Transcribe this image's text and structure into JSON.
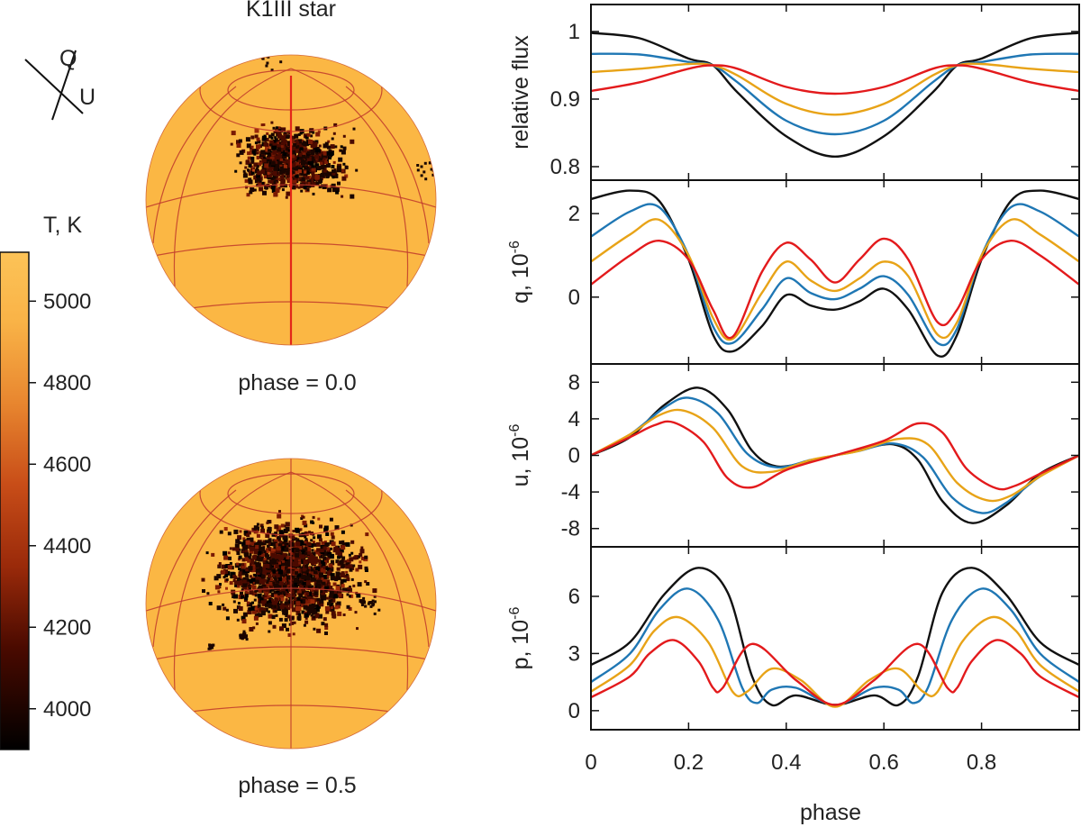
{
  "left": {
    "title": "K1III star",
    "legend_q": "Q",
    "legend_u": "U",
    "colorbar": {
      "title": "T, K",
      "ticks": [
        "5000",
        "4800",
        "4600",
        "4400",
        "4200",
        "4000"
      ],
      "tick_values": [
        5000,
        4800,
        4600,
        4400,
        4200,
        4000
      ],
      "range": [
        3900,
        5120
      ],
      "stops": [
        {
          "t": 3900,
          "color": "#000000"
        },
        {
          "t": 4150,
          "color": "#4a0a00"
        },
        {
          "t": 4350,
          "color": "#9a2a0a"
        },
        {
          "t": 4550,
          "color": "#c84d18"
        },
        {
          "t": 4750,
          "color": "#e8862f"
        },
        {
          "t": 4950,
          "color": "#f9b347"
        },
        {
          "t": 5120,
          "color": "#fcc357"
        }
      ]
    },
    "stars": [
      {
        "caption": "phase = 0.0",
        "photosphere_color": "#fbb744",
        "grid_color": "#c0392b",
        "meridian_color": "#e32719"
      },
      {
        "caption": "phase = 0.5",
        "photosphere_color": "#fbb744",
        "grid_color": "#c0392b",
        "meridian_color": "#c0392b"
      }
    ]
  },
  "chart_data": {
    "type": "line",
    "xlabel": "phase",
    "x_ticks": [
      "0",
      "0.2",
      "0.4",
      "0.6",
      "0.8"
    ],
    "x_tick_values": [
      0,
      0.2,
      0.4,
      0.6,
      0.8
    ],
    "xlim": [
      0,
      1
    ],
    "series_colors": [
      "#111111",
      "#1f77b4",
      "#e8a317",
      "#e31a1c"
    ],
    "panels": [
      {
        "ylabel": "relative flux",
        "ylabel_sup": "",
        "ylim": [
          0.78,
          1.04
        ],
        "y_ticks": [
          "1",
          "0.9",
          "0.8"
        ],
        "y_tick_values": [
          1.0,
          0.9,
          0.8
        ],
        "series": [
          {
            "name": "black",
            "x": [
              0,
              0.1,
              0.2,
              0.25,
              0.3,
              0.4,
              0.5,
              0.6,
              0.7,
              0.75,
              0.8,
              0.9,
              1.0
            ],
            "values": [
              0.998,
              0.99,
              0.96,
              0.95,
              0.91,
              0.845,
              0.815,
              0.845,
              0.91,
              0.95,
              0.96,
              0.99,
              0.998
            ]
          },
          {
            "name": "blue",
            "x": [
              0,
              0.1,
              0.2,
              0.25,
              0.3,
              0.4,
              0.5,
              0.6,
              0.7,
              0.75,
              0.8,
              0.9,
              1.0
            ],
            "values": [
              0.967,
              0.966,
              0.955,
              0.95,
              0.925,
              0.868,
              0.848,
              0.868,
              0.925,
              0.95,
              0.955,
              0.966,
              0.967
            ]
          },
          {
            "name": "orange",
            "x": [
              0,
              0.1,
              0.2,
              0.25,
              0.3,
              0.4,
              0.5,
              0.6,
              0.7,
              0.75,
              0.8,
              0.9,
              1.0
            ],
            "values": [
              0.94,
              0.945,
              0.952,
              0.95,
              0.935,
              0.893,
              0.877,
              0.893,
              0.935,
              0.95,
              0.952,
              0.945,
              0.94
            ]
          },
          {
            "name": "red",
            "x": [
              0,
              0.1,
              0.2,
              0.25,
              0.3,
              0.4,
              0.5,
              0.6,
              0.7,
              0.75,
              0.8,
              0.9,
              1.0
            ],
            "values": [
              0.912,
              0.925,
              0.945,
              0.95,
              0.945,
              0.918,
              0.908,
              0.918,
              0.945,
              0.95,
              0.945,
              0.925,
              0.912
            ]
          }
        ]
      },
      {
        "ylabel": "q, 10",
        "ylabel_sup": "-6",
        "ylim": [
          -1.6,
          2.8
        ],
        "y_ticks": [
          "2",
          "0"
        ],
        "y_tick_values": [
          2,
          0
        ],
        "series": [
          {
            "name": "black",
            "x": [
              0,
              0.08,
              0.14,
              0.2,
              0.25,
              0.29,
              0.35,
              0.4,
              0.45,
              0.5,
              0.55,
              0.6,
              0.65,
              0.71,
              0.75,
              0.8,
              0.86,
              0.92,
              1.0
            ],
            "values": [
              2.35,
              2.55,
              2.3,
              0.9,
              -0.9,
              -1.3,
              -0.7,
              0.05,
              -0.2,
              -0.3,
              -0.1,
              0.2,
              -0.3,
              -1.4,
              -0.9,
              0.9,
              2.3,
              2.55,
              2.35
            ]
          },
          {
            "name": "blue",
            "x": [
              0,
              0.08,
              0.14,
              0.2,
              0.25,
              0.29,
              0.35,
              0.4,
              0.45,
              0.5,
              0.55,
              0.6,
              0.65,
              0.71,
              0.75,
              0.8,
              0.86,
              0.92,
              1.0
            ],
            "values": [
              1.45,
              2.05,
              2.15,
              1.0,
              -0.7,
              -1.1,
              -0.3,
              0.45,
              0.1,
              -0.05,
              0.2,
              0.5,
              0.05,
              -1.1,
              -0.75,
              1.0,
              2.15,
              2.05,
              1.45
            ]
          },
          {
            "name": "orange",
            "x": [
              0,
              0.08,
              0.14,
              0.2,
              0.25,
              0.29,
              0.35,
              0.4,
              0.45,
              0.5,
              0.55,
              0.6,
              0.65,
              0.71,
              0.75,
              0.8,
              0.86,
              0.92,
              1.0
            ],
            "values": [
              0.85,
              1.5,
              1.85,
              1.0,
              -0.5,
              -1.0,
              0.1,
              0.85,
              0.4,
              0.15,
              0.45,
              0.85,
              0.5,
              -0.9,
              -0.6,
              1.0,
              1.85,
              1.5,
              0.85
            ]
          },
          {
            "name": "red",
            "x": [
              0,
              0.08,
              0.14,
              0.2,
              0.25,
              0.29,
              0.35,
              0.4,
              0.45,
              0.5,
              0.55,
              0.6,
              0.65,
              0.71,
              0.75,
              0.8,
              0.86,
              0.92,
              1.0
            ],
            "values": [
              0.3,
              1.0,
              1.35,
              0.9,
              -0.3,
              -0.95,
              0.6,
              1.3,
              0.9,
              0.35,
              0.9,
              1.4,
              0.9,
              -0.6,
              -0.3,
              0.9,
              1.35,
              1.0,
              0.3
            ]
          }
        ]
      },
      {
        "ylabel": "u, 10",
        "ylabel_sup": "-6",
        "ylim": [
          -10,
          10
        ],
        "y_ticks": [
          "8",
          "4",
          "0",
          "-4",
          "-8"
        ],
        "y_tick_values": [
          8,
          4,
          0,
          -4,
          -8
        ],
        "series": [
          {
            "name": "black",
            "x": [
              0,
              0.08,
              0.15,
              0.22,
              0.28,
              0.33,
              0.38,
              0.45,
              0.5,
              0.55,
              0.62,
              0.67,
              0.72,
              0.78,
              0.85,
              0.92,
              1.0
            ],
            "values": [
              0,
              2.0,
              5.5,
              7.4,
              5.0,
              0.5,
              -1.2,
              -0.6,
              0,
              0.6,
              1.2,
              -0.5,
              -5.0,
              -7.4,
              -5.5,
              -2.0,
              0
            ]
          },
          {
            "name": "blue",
            "x": [
              0,
              0.08,
              0.15,
              0.2,
              0.26,
              0.32,
              0.38,
              0.45,
              0.5,
              0.55,
              0.62,
              0.68,
              0.74,
              0.8,
              0.85,
              0.92,
              1.0
            ],
            "values": [
              0,
              2.3,
              5.2,
              6.3,
              4.6,
              0.2,
              -1.3,
              -0.5,
              0,
              0.5,
              1.3,
              -0.2,
              -4.6,
              -6.3,
              -5.2,
              -2.3,
              0
            ]
          },
          {
            "name": "orange",
            "x": [
              0,
              0.08,
              0.14,
              0.19,
              0.25,
              0.31,
              0.37,
              0.45,
              0.5,
              0.55,
              0.63,
              0.69,
              0.75,
              0.81,
              0.86,
              0.92,
              1.0
            ],
            "values": [
              0,
              2.3,
              4.4,
              4.9,
              3.0,
              -1.2,
              -1.8,
              -0.5,
              0,
              0.5,
              1.8,
              1.2,
              -3.0,
              -4.9,
              -4.4,
              -2.3,
              0
            ]
          },
          {
            "name": "red",
            "x": [
              0,
              0.08,
              0.13,
              0.17,
              0.23,
              0.28,
              0.33,
              0.4,
              0.5,
              0.6,
              0.67,
              0.72,
              0.77,
              0.83,
              0.87,
              0.92,
              1.0
            ],
            "values": [
              0,
              2.0,
              3.3,
              3.6,
              1.5,
              -2.5,
              -3.5,
              -1.6,
              0,
              1.6,
              3.5,
              2.5,
              -1.5,
              -3.6,
              -3.3,
              -2.0,
              0
            ]
          }
        ]
      },
      {
        "ylabel": "p, 10",
        "ylabel_sup": "-6",
        "ylim": [
          -1.0,
          8.6
        ],
        "y_ticks": [
          "6",
          "3",
          "0"
        ],
        "y_tick_values": [
          6,
          3,
          0
        ],
        "series": [
          {
            "name": "black",
            "x": [
              0,
              0.08,
              0.15,
              0.22,
              0.28,
              0.33,
              0.37,
              0.42,
              0.5,
              0.58,
              0.63,
              0.67,
              0.72,
              0.78,
              0.85,
              0.92,
              1.0
            ],
            "values": [
              2.4,
              3.6,
              6.1,
              7.5,
              6.2,
              1.8,
              0.3,
              0.8,
              0.3,
              0.8,
              0.3,
              1.8,
              6.2,
              7.5,
              6.1,
              3.6,
              2.4
            ]
          },
          {
            "name": "blue",
            "x": [
              0,
              0.08,
              0.14,
              0.2,
              0.26,
              0.31,
              0.34,
              0.37,
              0.42,
              0.5,
              0.58,
              0.63,
              0.66,
              0.69,
              0.74,
              0.8,
              0.86,
              0.92,
              1.0
            ],
            "values": [
              1.5,
              3.0,
              5.3,
              6.4,
              4.8,
              1.2,
              0.4,
              1.1,
              1.2,
              0.3,
              1.2,
              1.1,
              0.4,
              1.2,
              4.8,
              6.4,
              5.3,
              3.0,
              1.5
            ]
          },
          {
            "name": "orange",
            "x": [
              0,
              0.08,
              0.13,
              0.18,
              0.24,
              0.29,
              0.32,
              0.37,
              0.43,
              0.5,
              0.57,
              0.63,
              0.68,
              0.71,
              0.76,
              0.82,
              0.87,
              0.92,
              1.0
            ],
            "values": [
              1.0,
              2.4,
              4.2,
              4.9,
              3.6,
              1.0,
              1.0,
              2.2,
              1.6,
              0.2,
              1.6,
              2.2,
              1.0,
              1.0,
              3.6,
              4.9,
              4.2,
              2.4,
              1.0
            ]
          },
          {
            "name": "red",
            "x": [
              0,
              0.08,
              0.12,
              0.17,
              0.22,
              0.25,
              0.27,
              0.33,
              0.42,
              0.5,
              0.58,
              0.67,
              0.73,
              0.75,
              0.78,
              0.83,
              0.88,
              0.92,
              1.0
            ],
            "values": [
              0.7,
              1.8,
              3.0,
              3.7,
              2.6,
              1.2,
              1.2,
              3.5,
              1.6,
              0.3,
              1.6,
              3.5,
              1.2,
              1.2,
              2.6,
              3.7,
              3.0,
              1.8,
              0.7
            ]
          }
        ]
      }
    ]
  }
}
